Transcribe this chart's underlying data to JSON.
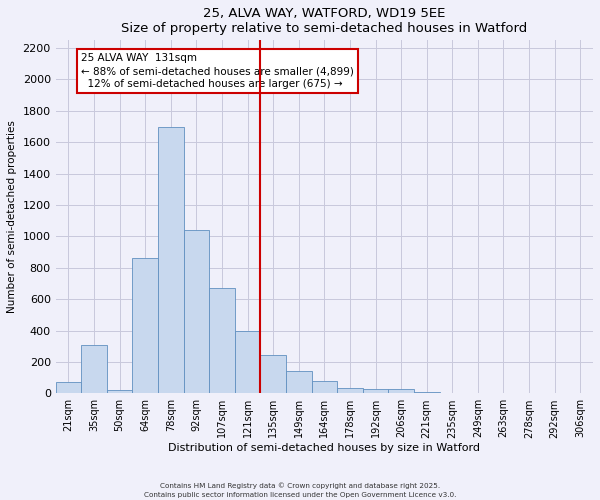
{
  "title": "25, ALVA WAY, WATFORD, WD19 5EE",
  "subtitle": "Size of property relative to semi-detached houses in Watford",
  "xlabel": "Distribution of semi-detached houses by size in Watford",
  "ylabel": "Number of semi-detached properties",
  "bar_labels": [
    "21sqm",
    "35sqm",
    "50sqm",
    "64sqm",
    "78sqm",
    "92sqm",
    "107sqm",
    "121sqm",
    "135sqm",
    "149sqm",
    "164sqm",
    "178sqm",
    "192sqm",
    "206sqm",
    "221sqm",
    "235sqm",
    "249sqm",
    "263sqm",
    "278sqm",
    "292sqm",
    "306sqm"
  ],
  "bar_values": [
    70,
    305,
    20,
    860,
    1695,
    1040,
    670,
    400,
    245,
    145,
    80,
    35,
    25,
    30,
    5,
    2,
    0,
    0,
    0,
    0,
    2
  ],
  "bar_color": "#c8d8ee",
  "bar_edge_color": "#6090c0",
  "vline_color": "#cc0000",
  "annotation_title": "25 ALVA WAY  131sqm",
  "annotation_line1": "← 88% of semi-detached houses are smaller (4,899)",
  "annotation_line2": "  12% of semi-detached houses are larger (675) →",
  "annotation_box_color": "#ffffff",
  "annotation_box_edge": "#cc0000",
  "ylim": [
    0,
    2250
  ],
  "yticks": [
    0,
    200,
    400,
    600,
    800,
    1000,
    1200,
    1400,
    1600,
    1800,
    2000,
    2200
  ],
  "footer_line1": "Contains HM Land Registry data © Crown copyright and database right 2025.",
  "footer_line2": "Contains public sector information licensed under the Open Government Licence v3.0.",
  "bg_color": "#f0f0fa",
  "grid_color": "#c8c8dc"
}
